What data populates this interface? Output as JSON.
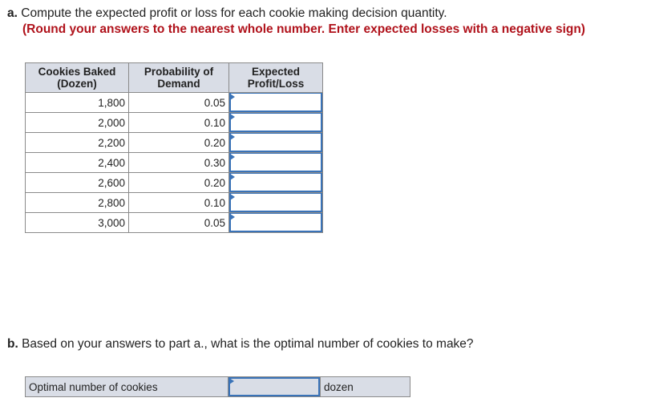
{
  "part_a": {
    "label": "a.",
    "question": "Compute the expected profit or loss for each cookie making decision quantity.",
    "instruction": "(Round your answers to the nearest whole number. Enter expected losses with a negative sign)"
  },
  "table": {
    "headers": [
      "Cookies Baked (Dozen)",
      "Probability of Demand",
      "Expected Profit/Loss"
    ],
    "header_lines": [
      [
        "Cookies Baked",
        "(Dozen)"
      ],
      [
        "Probability of",
        "Demand"
      ],
      [
        "Expected",
        "Profit/Loss"
      ]
    ],
    "rows": [
      {
        "cookies": "1,800",
        "prob": "0.05",
        "value": ""
      },
      {
        "cookies": "2,000",
        "prob": "0.10",
        "value": ""
      },
      {
        "cookies": "2,200",
        "prob": "0.20",
        "value": ""
      },
      {
        "cookies": "2,400",
        "prob": "0.30",
        "value": ""
      },
      {
        "cookies": "2,600",
        "prob": "0.20",
        "value": ""
      },
      {
        "cookies": "2,800",
        "prob": "0.10",
        "value": ""
      },
      {
        "cookies": "3,000",
        "prob": "0.05",
        "value": ""
      }
    ]
  },
  "part_b": {
    "label": "b.",
    "question": "Based on your answers to part a., what is the optimal number of cookies to make?",
    "row_label": "Optimal number of cookies",
    "value": "",
    "unit": "dozen"
  },
  "colors": {
    "instruction": "#b0121b",
    "input_border": "#3a73b8",
    "header_bg": "#d9dde6"
  }
}
